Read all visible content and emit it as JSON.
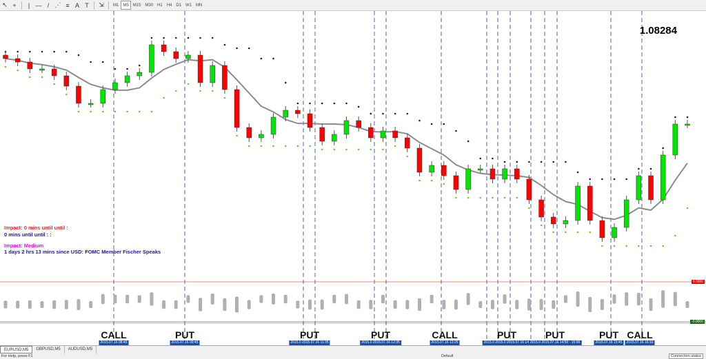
{
  "toolbar": {
    "tools": [
      {
        "icon": "cursor-icon",
        "g": "↖"
      },
      {
        "icon": "crosshair-icon",
        "g": "+"
      },
      {
        "icon": "vertical-line-icon",
        "g": "|"
      },
      {
        "icon": "horizontal-line-icon",
        "g": "—"
      },
      {
        "icon": "trendline-icon",
        "g": "/"
      },
      {
        "icon": "channel-icon",
        "g": "⋰"
      },
      {
        "icon": "fibonacci-icon",
        "g": "≡"
      },
      {
        "icon": "text-icon",
        "g": "A"
      },
      {
        "icon": "text-label-icon",
        "g": "T"
      },
      {
        "icon": "arrows-icon",
        "g": "⇲"
      }
    ],
    "timeframes": [
      "M1",
      "M5",
      "M15",
      "M30",
      "H1",
      "H4",
      "D1",
      "W1",
      "MN"
    ],
    "active_timeframe": "M5"
  },
  "price_label": "1.08284",
  "news": {
    "line1": "Impact: 0 mins until until :",
    "line2": "0 mins until until : :",
    "line3": "Impact: Medium",
    "line4": "1 days 2 hrs 13 mins since USD: FOMC Member Fischer Speaks"
  },
  "indicator": {
    "upper_level": "0.0000",
    "lower_level": "-0.0000"
  },
  "signals": [
    {
      "label": "CALL",
      "time": "2015.07.16 08:45"
    },
    {
      "label": "PUT",
      "time": "2015.07.16 09:45"
    },
    {
      "label": "PUT",
      "time": "2015.0 2015.07.16 11:35"
    },
    {
      "label": "PUT",
      "time": "2015.0 2015.07.16 12:35"
    },
    {
      "label": "CALL",
      "time": "2015.07.16 13:25"
    },
    {
      "label": "PUT",
      "time": "2015.0 2015.0 2015.07.16 14:"
    },
    {
      "label": "PUT",
      "time": "2015.0 2015.07.16 14:50 - 15:00"
    },
    {
      "label": "PUT",
      "time": "2015.07.16 15:45"
    },
    {
      "label": "CALL",
      "time": "2015.07.16 16:10"
    }
  ],
  "tabs": [
    "EURUSD,M5",
    "GBPUSD,M5",
    "AUDUSD,M5"
  ],
  "status": {
    "help": "For Help, press F1",
    "profile": "Default",
    "connection": "Connection status"
  },
  "colors": {
    "bull": "#00e600",
    "bear": "#ff0000",
    "ma": "#8c8c8c",
    "signal_line": "#5060b0"
  },
  "chart_data": {
    "type": "candlestick",
    "symbol": "EURUSD",
    "timeframe": "M5",
    "closes": [
      1.0896,
      1.0894,
      1.089,
      1.089,
      1.0886,
      1.088,
      1.087,
      1.087,
      1.0878,
      1.0882,
      1.0886,
      1.0888,
      1.0904,
      1.09,
      1.0896,
      1.0898,
      1.0882,
      1.0892,
      1.0878,
      1.0856,
      1.085,
      1.0852,
      1.0862,
      1.0866,
      1.0864,
      1.0856,
      1.0848,
      1.0852,
      1.086,
      1.0856,
      1.085,
      1.0854,
      1.085,
      1.0844,
      1.083,
      1.0834,
      1.0828,
      1.082,
      1.0832,
      1.0832,
      1.0826,
      1.0832,
      1.0826,
      1.0814,
      1.0804,
      1.08,
      1.0802,
      1.0822,
      1.0802,
      1.0792,
      1.0798,
      1.0814,
      1.0828,
      1.0814,
      1.084,
      1.0858,
      1.0858
    ]
  }
}
